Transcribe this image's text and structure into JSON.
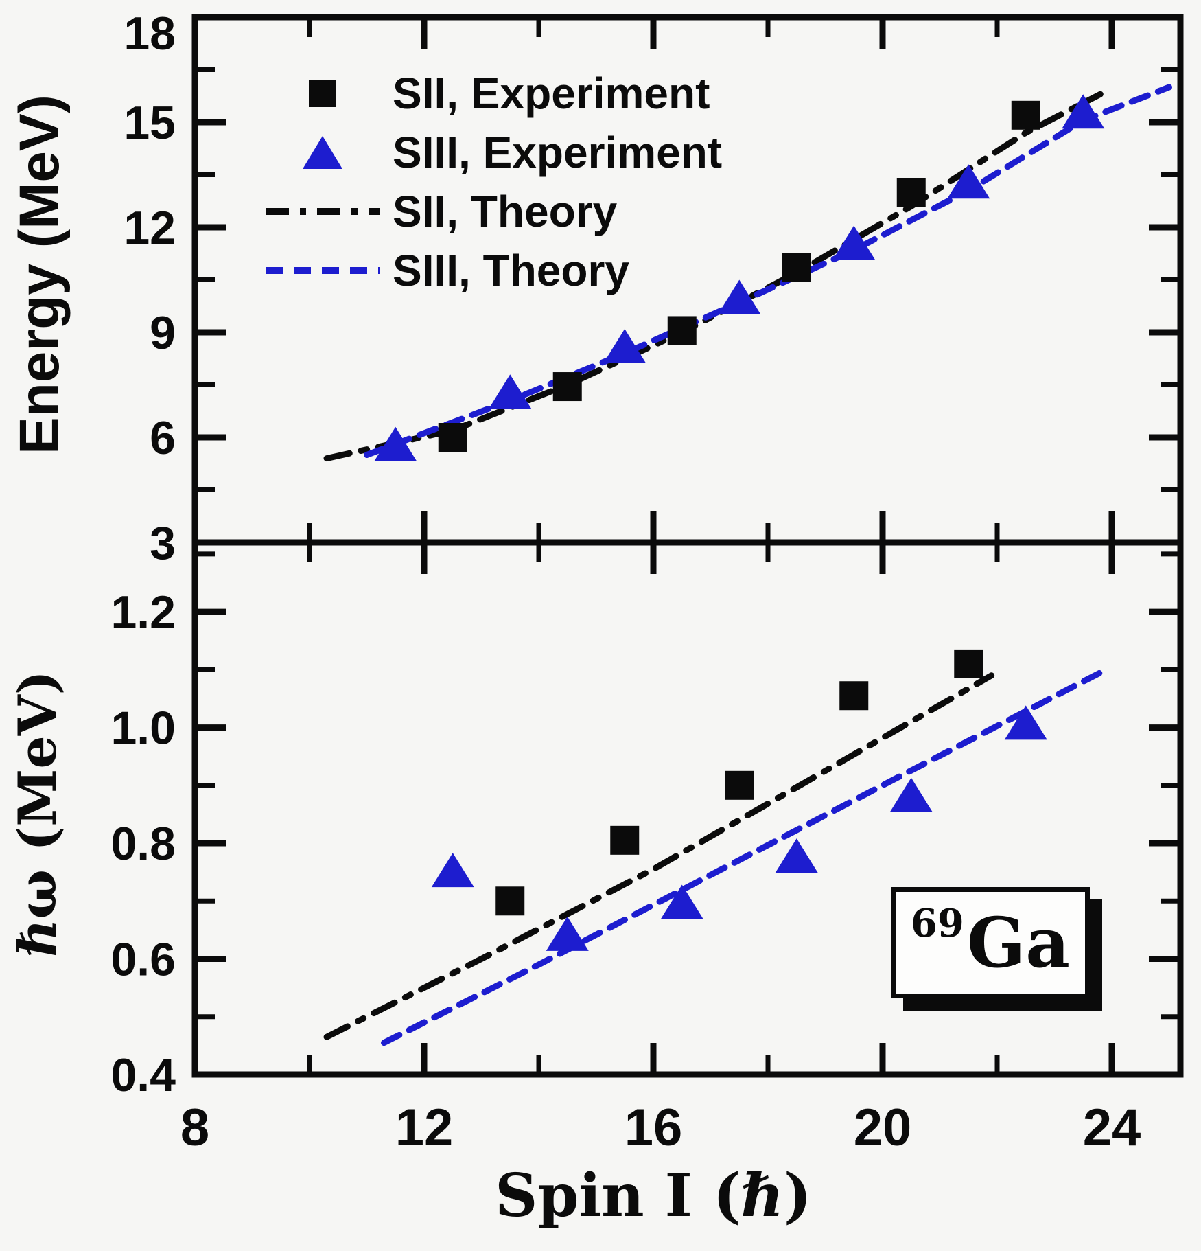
{
  "figure": {
    "background": "#f6f6f4",
    "frame_color": "#0b0b0b",
    "accent_blue": "#1d1dcf",
    "isotope_label": {
      "mass": "69",
      "element": "Ga"
    },
    "x_axis": {
      "label": "Spin I (ℏ)",
      "range": [
        8,
        25.2
      ],
      "major_ticks": [
        8,
        12,
        16,
        20,
        24
      ],
      "minor_ticks": [
        10,
        14,
        18,
        22
      ],
      "tick_labels": [
        "8",
        "12",
        "16",
        "20",
        "24"
      ]
    },
    "top_panel": {
      "y_axis": {
        "label": "Energy (MeV)",
        "range": [
          3,
          18
        ],
        "major_ticks": [
          3,
          6,
          9,
          12,
          15,
          18
        ],
        "minor_ticks": [
          4.5,
          7.5,
          10.5,
          13.5,
          16.5
        ],
        "tick_labels": [
          "18",
          "15",
          "12",
          "9",
          "6",
          "3"
        ],
        "tick_label_values": [
          18,
          15,
          12,
          9,
          6,
          3
        ]
      }
    },
    "bottom_panel": {
      "y_axis": {
        "label": "ℏω (MeV)",
        "range": [
          0.4,
          1.32
        ],
        "major_ticks": [
          0.4,
          0.6,
          0.8,
          1.0,
          1.2
        ],
        "minor_ticks": [
          0.5,
          0.7,
          0.9,
          1.1,
          1.3
        ],
        "tick_labels": [
          "1.2",
          "1.0",
          "0.8",
          "0.6",
          "0.4"
        ],
        "tick_label_values": [
          1.2,
          1.0,
          0.8,
          0.6,
          0.4
        ]
      }
    },
    "legend": {
      "position": "top-left of upper panel",
      "items": [
        {
          "label": "SII, Experiment",
          "marker": "square",
          "color": "#0b0b0b"
        },
        {
          "label": "SIII, Experiment",
          "marker": "triangle",
          "color": "#1d1dcf"
        },
        {
          "label": "SII, Theory",
          "marker": "dash-dot-line",
          "color": "#0b0b0b"
        },
        {
          "label": "SIII, Theory",
          "marker": "dashed-line",
          "color": "#1d1dcf"
        }
      ]
    }
  },
  "chart_data": [
    {
      "type": "scatter",
      "panel": "top",
      "title": "Excitation energy versus spin for bands SII and SIII in 69Ga",
      "xlabel": "Spin I (ℏ)",
      "ylabel": "Energy (MeV)",
      "xlim": [
        8,
        25.2
      ],
      "ylim": [
        3,
        18
      ],
      "grid": false,
      "series": [
        {
          "name": "SII, Experiment",
          "kind": "points",
          "marker": "square",
          "color": "#0b0b0b",
          "x": [
            12.5,
            14.5,
            16.5,
            18.5,
            20.5,
            22.5
          ],
          "y": [
            6.0,
            7.45,
            9.05,
            10.85,
            13.0,
            15.2
          ]
        },
        {
          "name": "SIII, Experiment",
          "kind": "points",
          "marker": "triangle",
          "color": "#1d1dcf",
          "x": [
            11.5,
            13.5,
            15.5,
            17.5,
            19.5,
            21.5,
            23.5
          ],
          "y": [
            5.75,
            7.25,
            8.55,
            9.95,
            11.5,
            13.25,
            15.25
          ]
        },
        {
          "name": "SII, Theory",
          "kind": "line",
          "linestyle": "dash-dot",
          "color": "#0b0b0b",
          "x": [
            10.3,
            12.5,
            14.5,
            16.5,
            18.5,
            20.5,
            22.5,
            23.8
          ],
          "y": [
            5.4,
            6.2,
            7.5,
            9.0,
            10.7,
            12.6,
            14.7,
            15.8
          ]
        },
        {
          "name": "SIII, Theory",
          "kind": "line",
          "linestyle": "dashed",
          "color": "#1d1dcf",
          "x": [
            11.0,
            13.5,
            15.5,
            17.5,
            19.5,
            21.5,
            23.5,
            25.0
          ],
          "y": [
            5.5,
            7.05,
            8.4,
            9.85,
            11.35,
            13.05,
            15.05,
            16.0
          ]
        }
      ]
    },
    {
      "type": "scatter",
      "panel": "bottom",
      "title": "Rotational frequency versus spin for bands SII and SIII in 69Ga",
      "xlabel": "Spin I (ℏ)",
      "ylabel": "ℏω (MeV)",
      "xlim": [
        8,
        25.2
      ],
      "ylim": [
        0.4,
        1.32
      ],
      "grid": false,
      "series": [
        {
          "name": "SII, Experiment",
          "kind": "points",
          "marker": "square",
          "color": "#0b0b0b",
          "x": [
            13.5,
            15.5,
            17.5,
            19.5,
            21.5
          ],
          "y": [
            0.7,
            0.805,
            0.9,
            1.055,
            1.11
          ]
        },
        {
          "name": "SIII, Experiment",
          "kind": "points",
          "marker": "triangle",
          "color": "#1d1dcf",
          "x": [
            12.5,
            14.5,
            16.5,
            18.5,
            20.5,
            22.5
          ],
          "y": [
            0.75,
            0.64,
            0.695,
            0.775,
            0.88,
            1.005
          ]
        },
        {
          "name": "SII, Theory",
          "kind": "line",
          "linestyle": "dash-dot",
          "color": "#0b0b0b",
          "x": [
            10.3,
            13.0,
            16.0,
            19.0,
            21.9
          ],
          "y": [
            0.465,
            0.6,
            0.755,
            0.925,
            1.09
          ]
        },
        {
          "name": "SIII, Theory",
          "kind": "line",
          "linestyle": "dashed",
          "color": "#1d1dcf",
          "x": [
            11.3,
            14.0,
            17.0,
            20.0,
            23.9
          ],
          "y": [
            0.455,
            0.59,
            0.745,
            0.9,
            1.1
          ]
        }
      ]
    }
  ]
}
